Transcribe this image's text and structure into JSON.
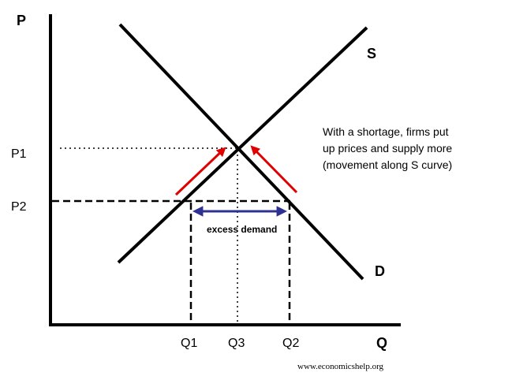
{
  "axes": {
    "y_label": "P",
    "x_label": "Q"
  },
  "price_labels": {
    "p1": "P1",
    "p2": "P2"
  },
  "quantity_labels": {
    "q1": "Q1",
    "q3": "Q3",
    "q2": "Q2"
  },
  "curves": {
    "supply": "S",
    "demand": "D"
  },
  "annotation": {
    "lines": [
      "With a shortage, firms put",
      "up prices and supply more",
      "(movement along S curve)"
    ]
  },
  "excess_demand_label": "excess demand",
  "watermark": "www.economicshelp.org",
  "colors": {
    "lines": "#000000",
    "arrows": "#e00000",
    "excess_arrow": "#2e3192"
  }
}
